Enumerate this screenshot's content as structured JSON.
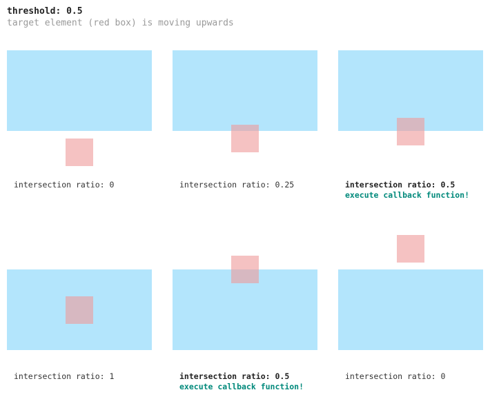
{
  "header": {
    "title": "threshold: 0.5",
    "subtitle": "target element (red box) is moving upwards"
  },
  "colors": {
    "root": "#b3e5fc",
    "target": "#ef9a9a",
    "callback": "#00897b"
  },
  "panels": [
    {
      "label": "intersection ratio: 0",
      "ratio": 0,
      "highlight": false,
      "callback": ""
    },
    {
      "label": "intersection ratio: 0.25",
      "ratio": 0.25,
      "highlight": false,
      "callback": ""
    },
    {
      "label": "intersection ratio: 0.5",
      "ratio": 0.5,
      "highlight": true,
      "callback": "execute callback function!"
    },
    {
      "label": "intersection ratio: 1",
      "ratio": 1,
      "highlight": false,
      "callback": ""
    },
    {
      "label": "intersection ratio: 0.5",
      "ratio": 0.5,
      "highlight": true,
      "callback": "execute callback function!"
    },
    {
      "label": "intersection ratio: 0",
      "ratio": 0,
      "highlight": false,
      "callback": ""
    }
  ]
}
